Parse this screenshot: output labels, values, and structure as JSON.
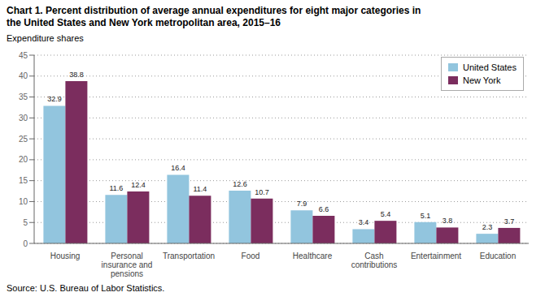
{
  "chart_data": {
    "type": "bar",
    "title": "Chart 1. Percent distribution of average annual expenditures for eight major categories in\nthe United States and New York metropolitan area, 2015–16",
    "ylabel": "Expenditure shares",
    "annotations": [
      "Source: U.S. Bureau of Labor Statistics."
    ],
    "categories": [
      "Housing",
      "Personal\ninsurance and\npensions",
      "Transportation",
      "Food",
      "Healthcare",
      "Cash\ncontributions",
      "Entertainment",
      "Education"
    ],
    "series": [
      {
        "name": "United States",
        "color": "#92C5DE",
        "values": [
          32.9,
          11.6,
          16.4,
          12.6,
          7.9,
          3.4,
          5.1,
          2.3
        ]
      },
      {
        "name": "New York",
        "color": "#7B2D5E",
        "values": [
          38.8,
          12.4,
          11.4,
          10.7,
          6.6,
          5.4,
          3.8,
          3.7
        ]
      }
    ],
    "ylim": [
      0,
      45
    ],
    "yticks": [
      0,
      5,
      10,
      15,
      20,
      25,
      30,
      35,
      40,
      45
    ],
    "grid": true,
    "legend": "upper right",
    "data_labels": true
  }
}
